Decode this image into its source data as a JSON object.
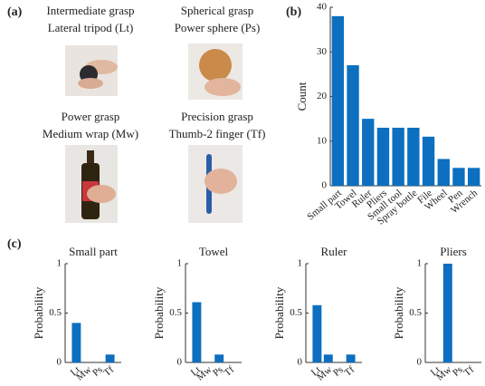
{
  "panel_labels": [
    "(a)",
    "(b)",
    "(c)"
  ],
  "grasps": [
    {
      "category": "Intermediate grasp",
      "name": "Lateral tripod (Lt)"
    },
    {
      "category": "Spherical grasp",
      "name": "Power sphere (Ps)"
    },
    {
      "category": "Power grasp",
      "name": "Medium wrap (Mw)"
    },
    {
      "category": "Precision grasp",
      "name": "Thumb-2 finger (Tf)"
    }
  ],
  "chart_data": [
    {
      "type": "bar",
      "ylabel": "Count",
      "categories": [
        "Small part",
        "Towel",
        "Ruler",
        "Pliers",
        "Small tool",
        "Spray bottle",
        "File",
        "Wheel",
        "Pen",
        "Wrench"
      ],
      "values": [
        38,
        27,
        15,
        13,
        13,
        13,
        11,
        6,
        4,
        4
      ],
      "color": "#0c6fbf",
      "ylim": [
        0,
        40
      ],
      "yticks": [
        0,
        10,
        20,
        30,
        40
      ]
    },
    {
      "type": "bar",
      "title": "Small part",
      "ylabel": "Probability",
      "categories": [
        "Lt",
        "Mw",
        "Ps",
        "Tf"
      ],
      "values": [
        0.4,
        0,
        0,
        0.08
      ],
      "color": "#0c6fbf",
      "ylim": [
        0,
        1
      ],
      "yticks": [
        0,
        0.5,
        1
      ]
    },
    {
      "type": "bar",
      "title": "Towel",
      "ylabel": "Probability",
      "categories": [
        "Lt",
        "Mw",
        "Ps",
        "Tf"
      ],
      "values": [
        0.61,
        0,
        0.08,
        0
      ],
      "color": "#0c6fbf",
      "ylim": [
        0,
        1
      ],
      "yticks": [
        0,
        0.5,
        1
      ]
    },
    {
      "type": "bar",
      "title": "Ruler",
      "ylabel": "Probability",
      "categories": [
        "Lt",
        "Mw",
        "Ps",
        "Tf"
      ],
      "values": [
        0.58,
        0.08,
        0,
        0.08
      ],
      "color": "#0c6fbf",
      "ylim": [
        0,
        1
      ],
      "yticks": [
        0,
        0.5,
        1
      ]
    },
    {
      "type": "bar",
      "title": "Pliers",
      "ylabel": "Probability",
      "categories": [
        "Lt",
        "Mw",
        "Ps",
        "Tf"
      ],
      "values": [
        0,
        1,
        0,
        0
      ],
      "color": "#0c6fbf",
      "ylim": [
        0,
        1
      ],
      "yticks": [
        0,
        0.5,
        1
      ]
    }
  ]
}
